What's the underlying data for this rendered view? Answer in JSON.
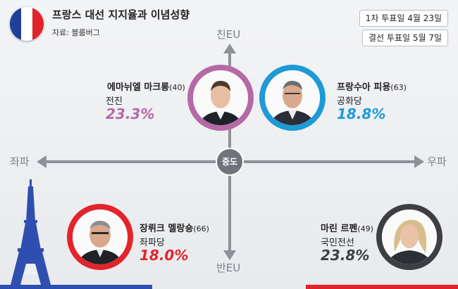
{
  "header": {
    "title": "프랑스 대선 지지율과 이념성향",
    "source": "자료: 블룸버그",
    "first_round": "1차 투표일  4월 23일",
    "runoff": "결선 투표일  5월  7일"
  },
  "axes": {
    "top": "친EU",
    "bottom": "반EU",
    "left": "좌파",
    "right": "우파",
    "center": "중도"
  },
  "candidates": [
    {
      "id": "macron",
      "name": "에마뉘엘 마크롱",
      "age": "(40)",
      "party": "전진",
      "pct": "23.3%",
      "color": "#b569a6"
    },
    {
      "id": "fillon",
      "name": "프랑수아 피용",
      "age": "(63)",
      "party": "공화당",
      "pct": "18.8%",
      "color": "#1e9ad6"
    },
    {
      "id": "melenchon",
      "name": "장뤼크 멜랑숑",
      "age": "(66)",
      "party": "좌파당",
      "pct": "18.0%",
      "color": "#e3242b"
    },
    {
      "id": "lepen",
      "name": "마린 르펜",
      "age": "(49)",
      "party": "국민전선",
      "pct": "23.8%",
      "color": "#3d3f42"
    }
  ],
  "colors": {
    "flag_blue": "#1f3f9a",
    "flag_white": "#ffffff",
    "flag_red": "#e0242b",
    "axis": "#8d9298",
    "tower": "#2f4fb0"
  }
}
